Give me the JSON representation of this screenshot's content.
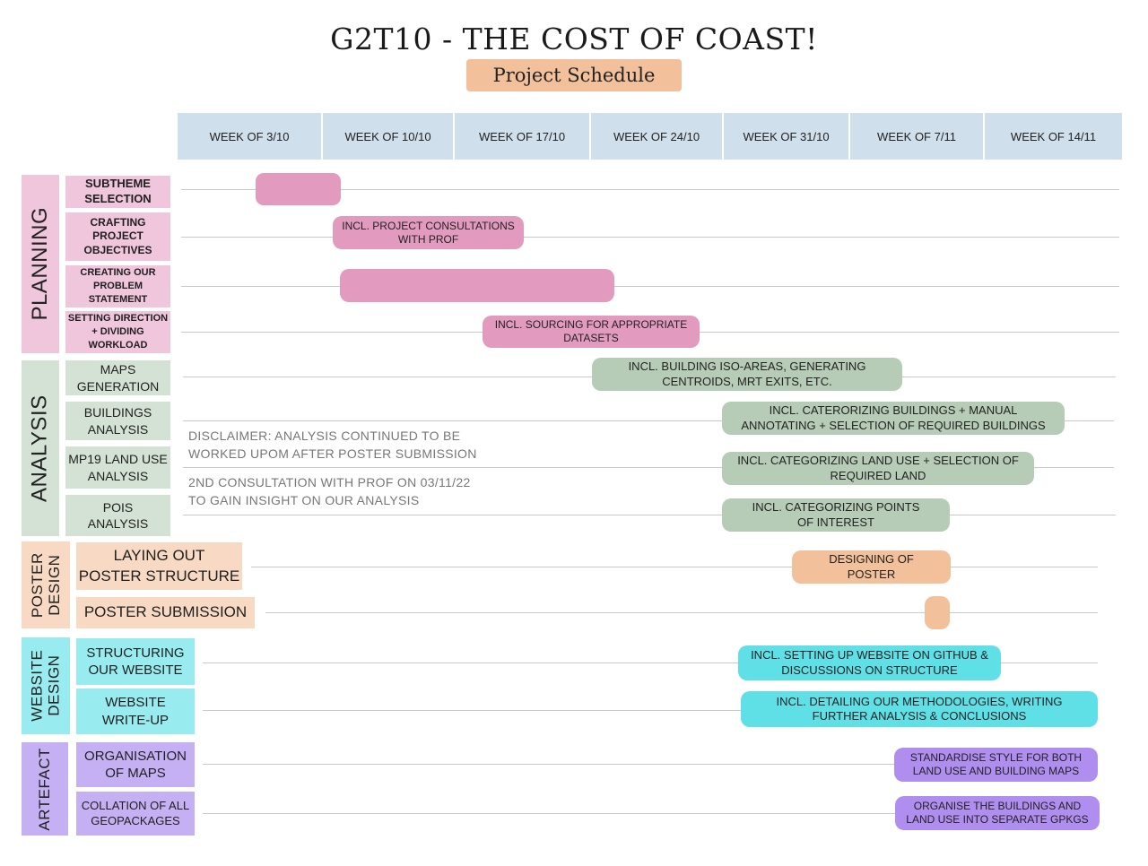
{
  "title": "G2T10 - THE COST OF COAST!",
  "subtitle": "Project Schedule",
  "colors": {
    "planning": "#f0c6dd",
    "planning_bar": "#e29bbf",
    "analysis": "#d4e2d5",
    "analysis_bar": "#b6ccb7",
    "poster": "#f8dac4",
    "poster_bar": "#f2c09a",
    "website": "#98ecef",
    "website_bar": "#5ee0e6",
    "artefact": "#c6b0f4",
    "artefact_bar": "#b08eef",
    "week_header": "#cfdfec"
  },
  "weeks": [
    "WEEK OF 3/10",
    "WEEK OF 10/10",
    "WEEK OF 17/10",
    "WEEK OF 24/10",
    "WEEK OF 31/10",
    "WEEK OF 7/11",
    "WEEK OF 14/11"
  ],
  "categories": {
    "planning": "PLANNING",
    "analysis": "ANALYSIS",
    "poster": "POSTER\nDESIGN",
    "website": "WEBSITE\nDESIGN",
    "artefact": "ARTEFACT"
  },
  "tasks": {
    "subtheme": "SUBTHEME\nSELECTION",
    "objectives": "CRAFTING\nPROJECT\nOBJECTIVES",
    "problem": "CREATING OUR\nPROBLEM\nSTATEMENT",
    "direction": "SETTING DIRECTION\n+ DIVIDING\nWORKLOAD",
    "maps": "MAPS\nGENERATION",
    "buildings": "BUILDINGS\nANALYSIS",
    "landuse": "MP19 LAND USE\nANALYSIS",
    "pois": "POIS\nANALYSIS",
    "layout": "LAYING OUT\nPOSTER STRUCTURE",
    "submission": "POSTER SUBMISSION",
    "structuring": "STRUCTURING\nOUR WEBSITE",
    "writeup": "WEBSITE\nWRITE-UP",
    "orgmaps": "ORGANISATION\nOF MAPS",
    "collation": "COLLATION OF ALL\nGEOPACKAGES"
  },
  "bars": {
    "subtheme": "",
    "objectives": "INCL. PROJECT CONSULTATIONS\nWITH PROF",
    "problem": "",
    "direction": "INCL. SOURCING FOR APPROPRIATE\nDATASETS",
    "maps": "INCL. BUILDING ISO-AREAS, GENERATING\nCENTROIDS, MRT EXITS, ETC.",
    "buildings": "INCL. CATERORIZING BUILDINGS + MANUAL\nANNOTATING + SELECTION OF REQUIRED BUILDINGS",
    "landuse": "INCL. CATEGORIZING LAND USE + SELECTION OF\nREQUIRED LAND",
    "pois": "INCL. CATEGORIZING POINTS\nOF INTEREST",
    "layout": "DESIGNING OF\nPOSTER",
    "submission": "",
    "structuring": "INCL. SETTING UP WEBSITE ON GITHUB &\nDISCUSSIONS ON STRUCTURE",
    "writeup": "INCL. DETAILING OUR METHODOLOGIES, WRITING\nFURTHER ANALYSIS & CONCLUSIONS",
    "orgmaps": "STANDARDISE STYLE FOR BOTH\nLAND USE AND BUILDING MAPS",
    "collation": "ORGANISE THE BUILDINGS AND\nLAND USE INTO SEPARATE GPKGS"
  },
  "notes": {
    "disclaimer": "DISCLAIMER: ANALYSIS CONTINUED TO BE\nWORKED UPOM AFTER POSTER SUBMISSION",
    "consultation": "2ND CONSULTATION WITH PROF ON 03/11/22\nTO GAIN INSIGHT ON OUR ANALYSIS"
  }
}
